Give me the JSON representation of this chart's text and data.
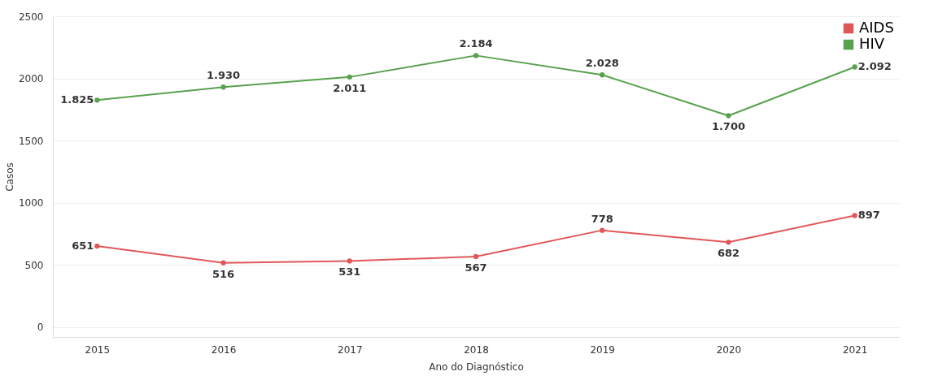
{
  "chart_data": {
    "type": "line",
    "xlabel": "Ano do Diagnóstico",
    "ylabel": "Casos",
    "categories": [
      "2015",
      "2016",
      "2017",
      "2018",
      "2019",
      "2020",
      "2021"
    ],
    "series": [
      {
        "name": "AIDS",
        "color": "#e15759",
        "values": [
          651,
          516,
          531,
          567,
          778,
          682,
          897
        ],
        "value_labels": [
          "651",
          "516",
          "531",
          "567",
          "778",
          "682",
          "897"
        ]
      },
      {
        "name": "HIV",
        "color": "#59a14f",
        "values": [
          1825,
          1930,
          2011,
          2184,
          2028,
          1700,
          2092
        ],
        "value_labels": [
          "1.825",
          "1.930",
          "2.011",
          "2.184",
          "2.028",
          "1.700",
          "2.092"
        ]
      }
    ],
    "ylim": [
      -80,
      2500
    ],
    "yticks": [
      0,
      500,
      1000,
      1500,
      2000,
      2500
    ],
    "grid": "y",
    "legend": "top right",
    "marker": "circle"
  }
}
